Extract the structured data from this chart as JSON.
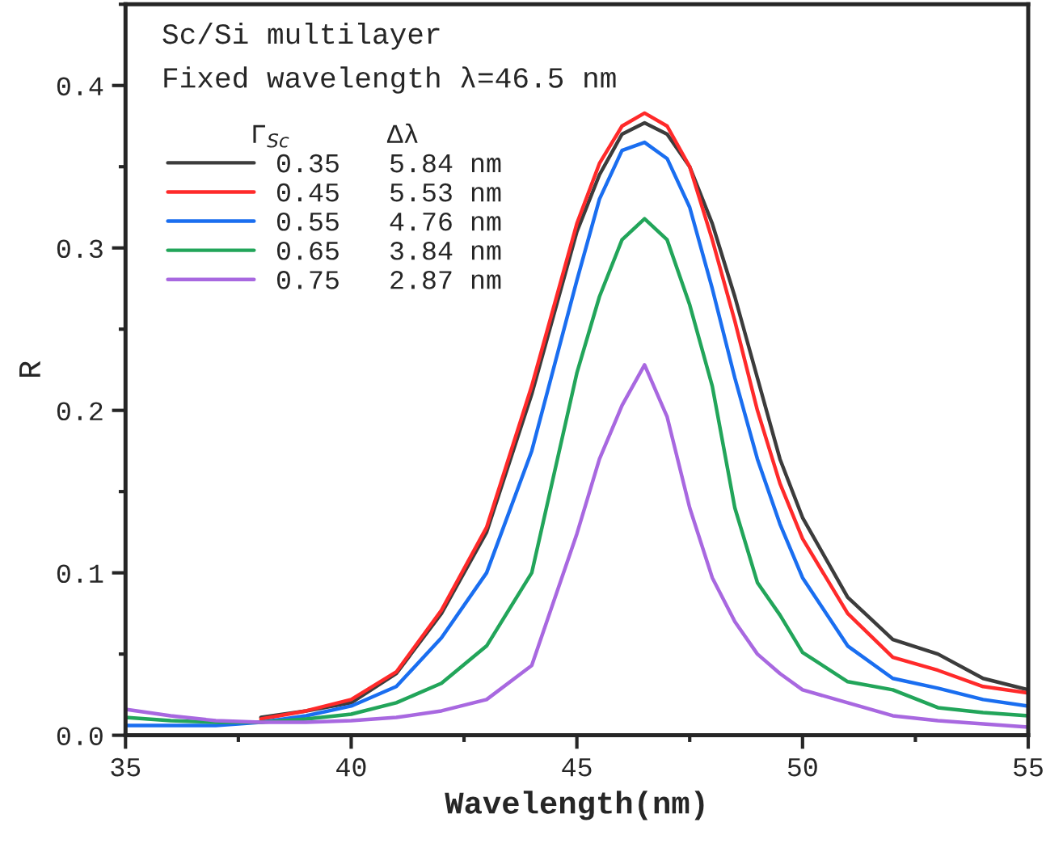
{
  "chart_data": {
    "type": "line",
    "xlabel": "Wavelength(nm)",
    "ylabel": "R",
    "annotations": [
      "Sc/Si multilayer",
      "Fixed wavelength λ=46.5 nm"
    ],
    "legend_title": "Γ$_{Sc}$      Δλ",
    "x": [
      35,
      36,
      37,
      38,
      39,
      40,
      41,
      42,
      43,
      44,
      45,
      45.5,
      46,
      46.5,
      47,
      47.5,
      48,
      48.5,
      49,
      49.5,
      50,
      51,
      52,
      53,
      54,
      55
    ],
    "series": [
      {
        "name": "0.35   5.84 nm",
        "color": "#3c3c3c",
        "values": [
          null,
          null,
          null,
          0.011,
          0.015,
          0.02,
          0.038,
          0.075,
          0.125,
          0.21,
          0.31,
          0.345,
          0.37,
          0.377,
          0.37,
          0.35,
          0.315,
          0.27,
          0.22,
          0.17,
          0.134,
          0.085,
          0.059,
          0.05,
          0.035,
          0.028
        ]
      },
      {
        "name": "0.45   5.53 nm",
        "color": "#ff2a2a",
        "values": [
          null,
          null,
          null,
          0.01,
          0.015,
          0.022,
          0.039,
          0.077,
          0.128,
          0.215,
          0.315,
          0.352,
          0.375,
          0.383,
          0.375,
          0.35,
          0.305,
          0.255,
          0.2,
          0.155,
          0.121,
          0.075,
          0.048,
          0.04,
          0.03,
          0.026
        ]
      },
      {
        "name": "0.55   4.76 nm",
        "color": "#1a6ef0",
        "values": [
          0.006,
          0.006,
          0.006,
          0.008,
          0.012,
          0.018,
          0.03,
          0.06,
          0.1,
          0.175,
          0.28,
          0.33,
          0.36,
          0.365,
          0.355,
          0.325,
          0.275,
          0.22,
          0.17,
          0.13,
          0.097,
          0.055,
          0.035,
          0.029,
          0.022,
          0.018
        ]
      },
      {
        "name": "0.65   3.84 nm",
        "color": "#22a55a",
        "values": [
          0.011,
          0.009,
          0.008,
          0.008,
          0.01,
          0.013,
          0.02,
          0.032,
          0.055,
          0.1,
          0.223,
          0.27,
          0.305,
          0.318,
          0.305,
          0.265,
          0.215,
          0.14,
          0.094,
          0.074,
          0.051,
          0.033,
          0.028,
          0.017,
          0.014,
          0.012
        ]
      },
      {
        "name": "0.75   2.87 nm",
        "color": "#a868e0",
        "values": [
          0.016,
          0.012,
          0.009,
          0.008,
          0.008,
          0.009,
          0.011,
          0.015,
          0.022,
          0.043,
          0.124,
          0.17,
          0.203,
          0.228,
          0.196,
          0.14,
          0.097,
          0.07,
          0.05,
          0.038,
          0.028,
          0.02,
          0.012,
          0.009,
          0.007,
          0.005
        ]
      }
    ],
    "xlim": [
      35,
      55
    ],
    "ylim": [
      0,
      0.45
    ],
    "xticks": [
      35,
      40,
      45,
      50,
      55
    ],
    "yticks": [
      {
        "value": 0,
        "label": "0.0"
      },
      0.1,
      0.2,
      0.3,
      0.4
    ],
    "grid": false,
    "legend": "top left",
    "marker": "none",
    "line_style": "solid"
  }
}
